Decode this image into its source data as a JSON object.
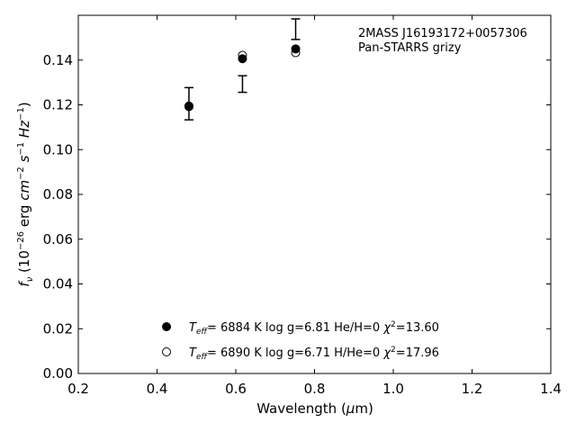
{
  "chart_data": {
    "type": "scatter",
    "title": "",
    "annotation": [
      "2MASS J16193172+0057306",
      "Pan-STARRS grizy"
    ],
    "xlabel": "Wavelength (μm)",
    "ylabel": "f_ν (10^−26 erg cm^−2 s^−1 Hz^−1)",
    "xlim": [
      0.2,
      1.4
    ],
    "ylim": [
      0.0,
      0.16
    ],
    "xticks": [
      "0.2",
      "0.4",
      "0.6",
      "0.8",
      "1.0",
      "1.2",
      "1.4"
    ],
    "yticks": [
      "0.00",
      "0.02",
      "0.04",
      "0.06",
      "0.08",
      "0.10",
      "0.12",
      "0.14"
    ],
    "grid": false,
    "legend_position": "bottom-center",
    "observed": {
      "marker": "errorbar",
      "x": [
        0.481,
        0.617,
        0.752
      ],
      "y": [
        0.1205,
        0.1293,
        0.1538
      ],
      "yerr": [
        0.0072,
        0.0037,
        0.0046
      ]
    },
    "series": [
      {
        "name": "T_eff= 6884 K log g=6.81 He/H=0 χ²=13.60",
        "legend": {
          "teff": "6884",
          "logg": "6.81",
          "comp": "He/H=0",
          "chi2": "13.60"
        },
        "marker": "filled-circle",
        "x": [
          0.481,
          0.617,
          0.752
        ],
        "y": [
          0.1192,
          0.1406,
          0.145
        ]
      },
      {
        "name": "T_eff= 6890 K log g=6.71 H/He=0 χ²=17.96",
        "legend": {
          "teff": "6890",
          "logg": "6.71",
          "comp": "H/He=0",
          "chi2": "17.96"
        },
        "marker": "open-circle",
        "x": [
          0.481,
          0.617,
          0.752
        ],
        "y": [
          0.1195,
          0.1421,
          0.1433
        ]
      }
    ]
  },
  "colors": {
    "axis": "#000000",
    "marker": "#000000",
    "background": "#ffffff"
  }
}
